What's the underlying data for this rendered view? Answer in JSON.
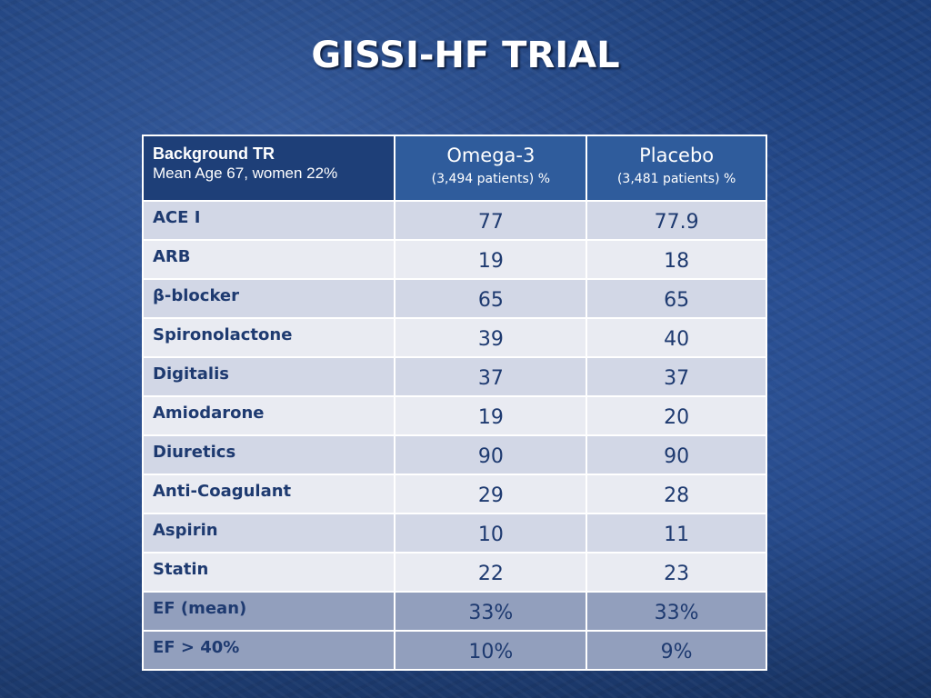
{
  "slide": {
    "title": "GISSI-HF TRIAL"
  },
  "table": {
    "header": {
      "background_title": "Background TR",
      "background_subtitle": "Mean Age 67, women 22%",
      "groups": [
        {
          "name": "Omega-3",
          "n": "(3,494 patients) %"
        },
        {
          "name": "Placebo",
          "n": "(3,481 patients) %"
        }
      ]
    },
    "rows": [
      {
        "label": "ACE I",
        "omega3": "77",
        "placebo": "77.9"
      },
      {
        "label": "ARB",
        "omega3": "19",
        "placebo": "18"
      },
      {
        "label": "β-blocker",
        "omega3": "65",
        "placebo": "65"
      },
      {
        "label": "Spironolactone",
        "omega3": "39",
        "placebo": "40"
      },
      {
        "label": "Digitalis",
        "omega3": "37",
        "placebo": "37"
      },
      {
        "label": "Amiodarone",
        "omega3": "19",
        "placebo": "20"
      },
      {
        "label": "Diuretics",
        "omega3": "90",
        "placebo": "90"
      },
      {
        "label": "Anti-Coagulant",
        "omega3": "29",
        "placebo": "28"
      },
      {
        "label": "Aspirin",
        "omega3": "10",
        "placebo": "11"
      },
      {
        "label": "Statin",
        "omega3": "22",
        "placebo": "23"
      },
      {
        "label": "EF (mean)",
        "omega3": "33%",
        "placebo": "33%"
      },
      {
        "label": "EF > 40%",
        "omega3": "10%",
        "placebo": "9%"
      }
    ]
  },
  "colors": {
    "background": "#1f4280",
    "header_cell": "#2f5c9c",
    "row_light": "#e9ebf2",
    "row_mid": "#d2d7e6",
    "row_dark": "#929fbd",
    "text_dark": "#1e3a70"
  }
}
